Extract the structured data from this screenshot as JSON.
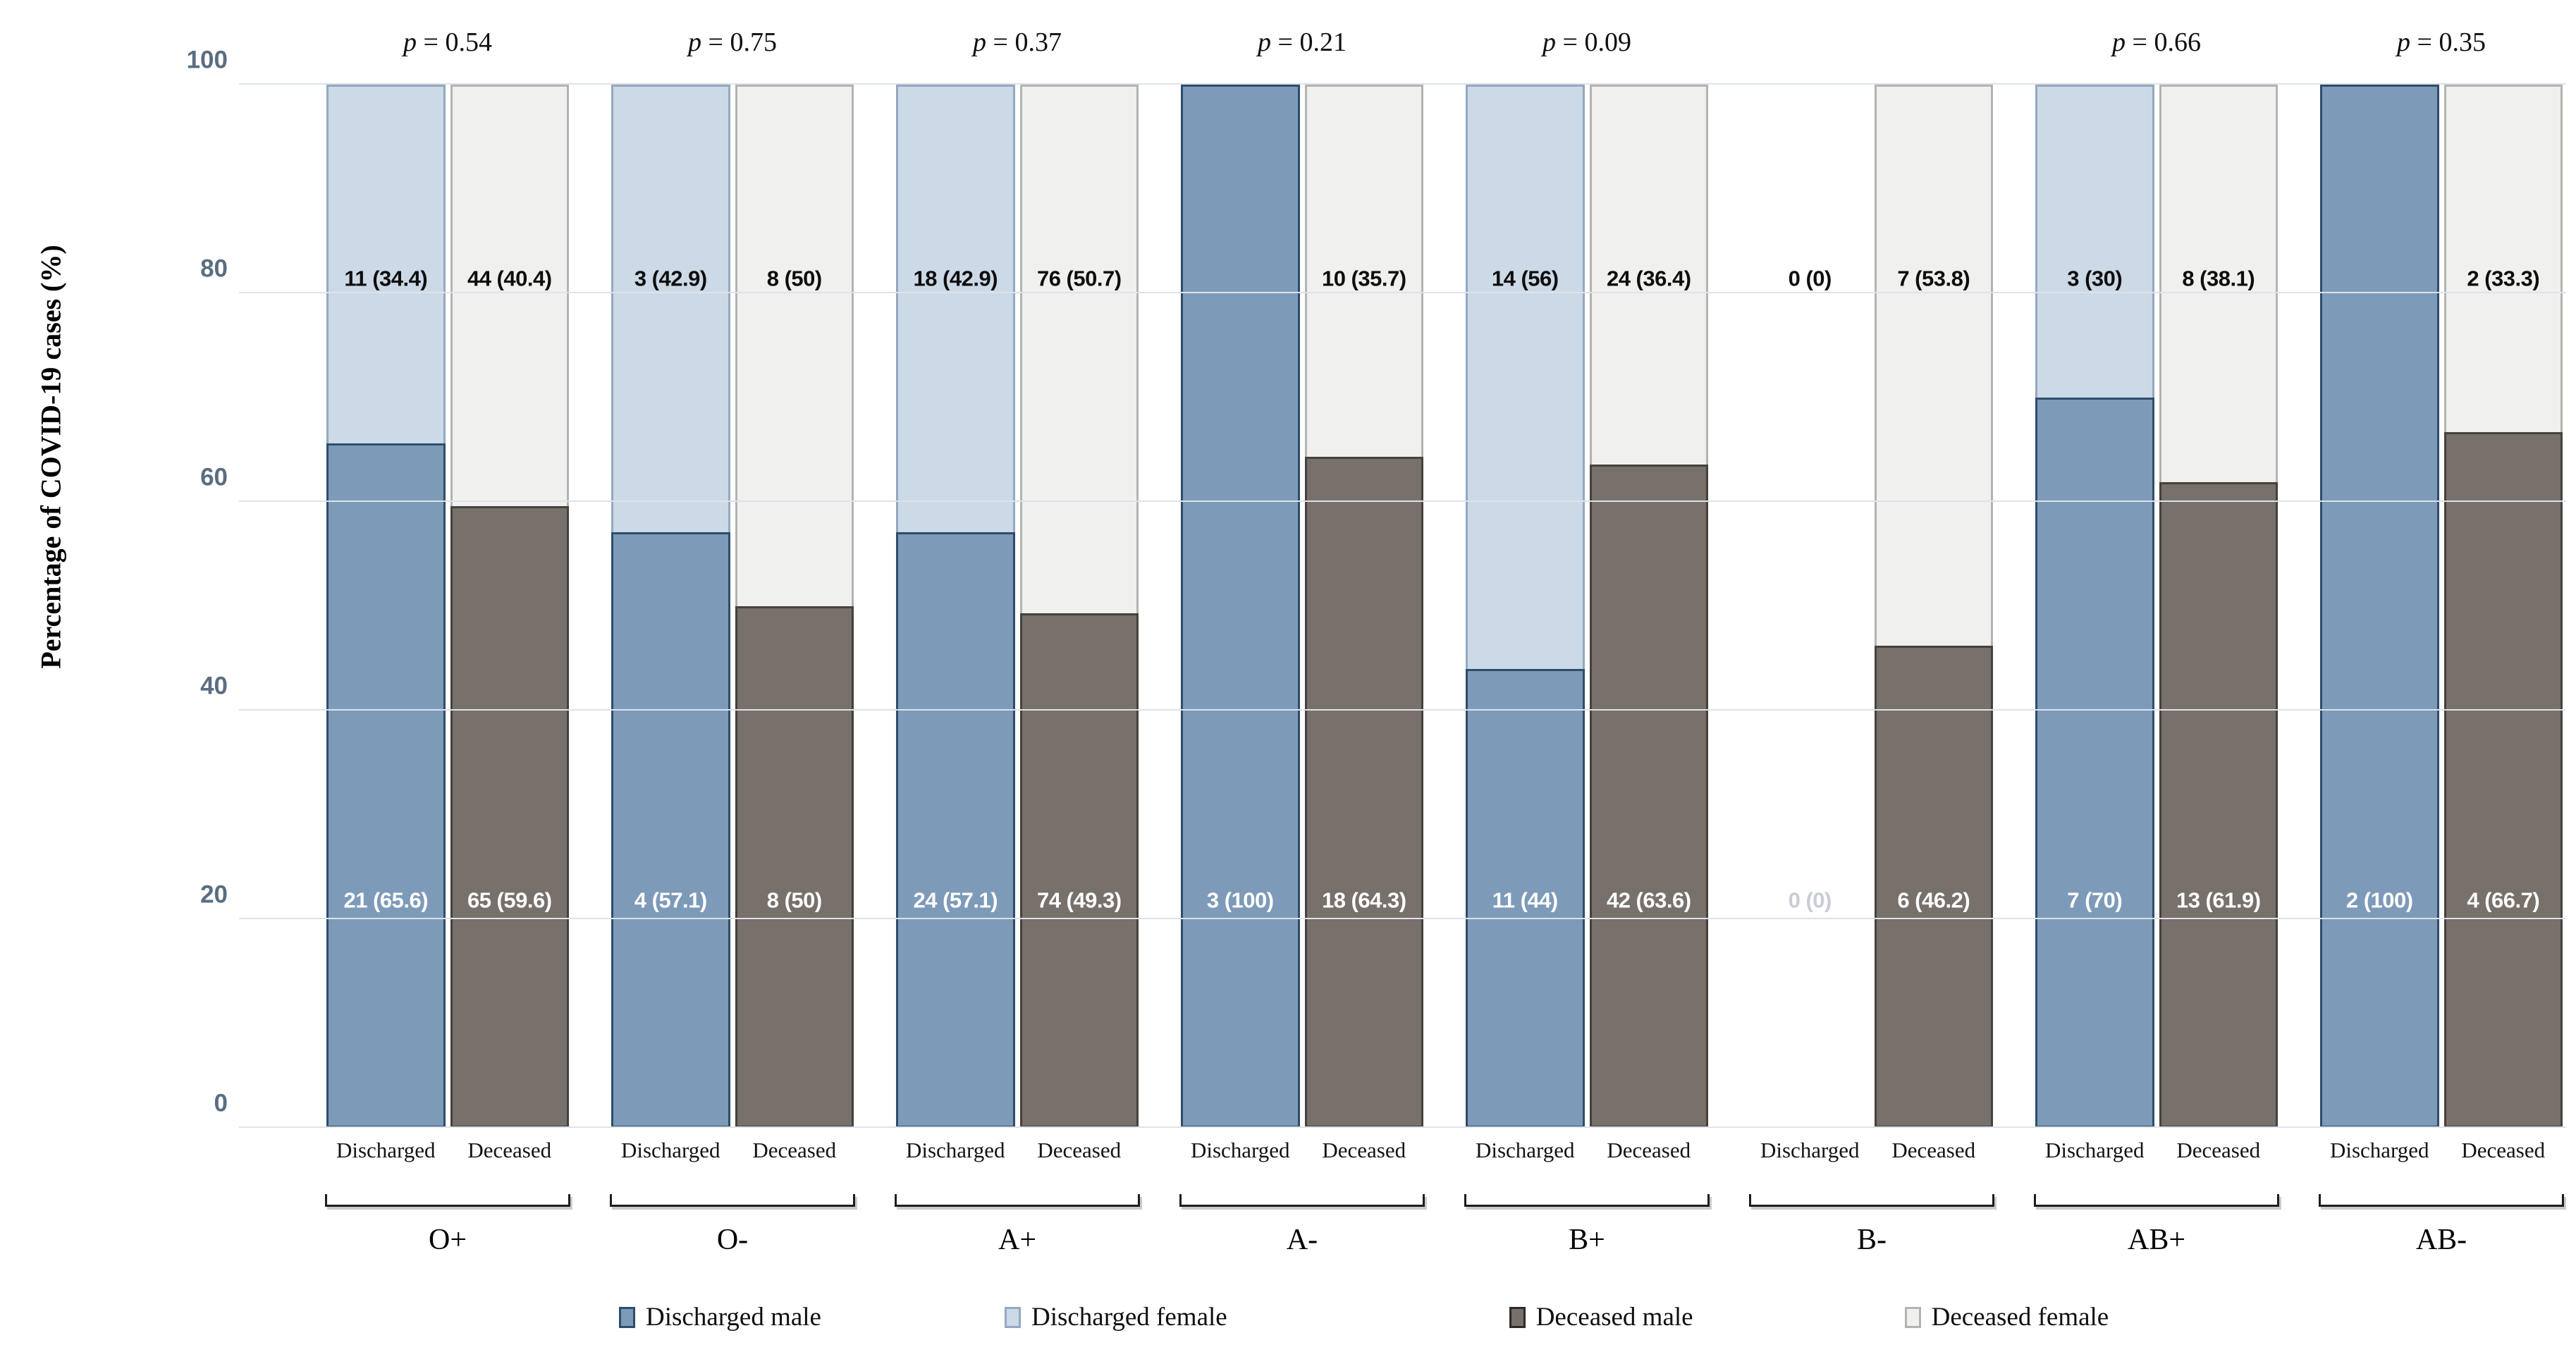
{
  "y_axis": {
    "title": "Percentage of COVID-19 cases (%)",
    "ticks": [
      0,
      20,
      40,
      60,
      80,
      100
    ]
  },
  "p_symbol": "p",
  "colors": {
    "discharged_male": "#7D9AB9",
    "discharged_male_border": "#2F4D6B",
    "discharged_female": "#CCD9E6",
    "discharged_female_border": "#93A9BF",
    "deceased_male": "#77706B",
    "deceased_male_border": "#46413D",
    "deceased_female": "#F0F0EE",
    "deceased_female_border": "#B3B3B0",
    "grid": "#DDE3E9",
    "axis_text": "#5A6E82",
    "muted_label": "#C7CDD5"
  },
  "legend": {
    "items": [
      {
        "label": "Discharged male",
        "key": "dm"
      },
      {
        "label": "Discharged female",
        "key": "df"
      },
      {
        "label": "Deceased male",
        "key": "xm"
      },
      {
        "label": "Deceased female",
        "key": "xf"
      }
    ]
  },
  "chart_data": {
    "type": "bar",
    "stacked": true,
    "ylabel": "Percentage of COVID-19 cases (%)",
    "ylim": [
      0,
      100
    ],
    "grid": true,
    "legend_position": "bottom",
    "groups": [
      {
        "blood_group": "O+",
        "p_label": "p = 0.54",
        "bars": [
          {
            "condition": "Discharged",
            "type": "discharged",
            "male_n": 21,
            "male_pct": 65.6,
            "female_n": 11,
            "female_pct": 34.4,
            "label_top": "11 (34.4)",
            "label_bottom": "21 (65.6)",
            "bottom_muted": false
          },
          {
            "condition": "Deceased",
            "type": "deceased",
            "male_n": 65,
            "male_pct": 59.6,
            "female_n": 44,
            "female_pct": 40.4,
            "label_top": "44 (40.4)",
            "label_bottom": "65 (59.6)",
            "bottom_muted": false
          }
        ]
      },
      {
        "blood_group": "O-",
        "p_label": "p = 0.75",
        "bars": [
          {
            "condition": "Discharged",
            "type": "discharged",
            "male_n": 4,
            "male_pct": 57.1,
            "female_n": 3,
            "female_pct": 42.9,
            "label_top": "3 (42.9)",
            "label_bottom": "4 (57.1)",
            "bottom_muted": false
          },
          {
            "condition": "Deceased",
            "type": "deceased",
            "male_n": 8,
            "male_pct": 50,
            "female_n": 8,
            "female_pct": 50,
            "label_top": "8 (50)",
            "label_bottom": "8 (50)",
            "bottom_muted": false
          }
        ]
      },
      {
        "blood_group": "A+",
        "p_label": "p = 0.37",
        "bars": [
          {
            "condition": "Discharged",
            "type": "discharged",
            "male_n": 24,
            "male_pct": 57.1,
            "female_n": 18,
            "female_pct": 42.9,
            "label_top": "18 (42.9)",
            "label_bottom": "24 (57.1)",
            "bottom_muted": false
          },
          {
            "condition": "Deceased",
            "type": "deceased",
            "male_n": 74,
            "male_pct": 49.3,
            "female_n": 76,
            "female_pct": 50.7,
            "label_top": "76 (50.7)",
            "label_bottom": "74 (49.3)",
            "bottom_muted": false
          }
        ]
      },
      {
        "blood_group": "A-",
        "p_label": "p = 0.21",
        "bars": [
          {
            "condition": "Discharged",
            "type": "discharged",
            "male_n": 3,
            "male_pct": 100,
            "female_n": 0,
            "female_pct": 0,
            "label_top": null,
            "label_bottom": "3 (100)",
            "bottom_muted": false
          },
          {
            "condition": "Deceased",
            "type": "deceased",
            "male_n": 18,
            "male_pct": 64.3,
            "female_n": 10,
            "female_pct": 35.7,
            "label_top": "10 (35.7)",
            "label_bottom": "18 (64.3)",
            "bottom_muted": false
          }
        ]
      },
      {
        "blood_group": "B+",
        "p_label": "p = 0.09",
        "bars": [
          {
            "condition": "Discharged",
            "type": "discharged",
            "male_n": 11,
            "male_pct": 44,
            "female_n": 14,
            "female_pct": 56,
            "label_top": "14 (56)",
            "label_bottom": "11 (44)",
            "bottom_muted": false
          },
          {
            "condition": "Deceased",
            "type": "deceased",
            "male_n": 42,
            "male_pct": 63.6,
            "female_n": 24,
            "female_pct": 36.4,
            "label_top": "24 (36.4)",
            "label_bottom": "42 (63.6)",
            "bottom_muted": false
          }
        ]
      },
      {
        "blood_group": "B-",
        "p_label": null,
        "bars": [
          {
            "condition": "Discharged",
            "type": "discharged",
            "male_n": 0,
            "male_pct": 0,
            "female_n": 0,
            "female_pct": 0,
            "label_top": "0 (0)",
            "label_bottom": "0 (0)",
            "bottom_muted": true
          },
          {
            "condition": "Deceased",
            "type": "deceased",
            "male_n": 6,
            "male_pct": 46.2,
            "female_n": 7,
            "female_pct": 53.8,
            "label_top": "7 (53.8)",
            "label_bottom": "6 (46.2)",
            "bottom_muted": false
          }
        ]
      },
      {
        "blood_group": "AB+",
        "p_label": "p = 0.66",
        "bars": [
          {
            "condition": "Discharged",
            "type": "discharged",
            "male_n": 7,
            "male_pct": 70,
            "female_n": 3,
            "female_pct": 30,
            "label_top": "3 (30)",
            "label_bottom": "7 (70)",
            "bottom_muted": false
          },
          {
            "condition": "Deceased",
            "type": "deceased",
            "male_n": 13,
            "male_pct": 61.9,
            "female_n": 8,
            "female_pct": 38.1,
            "label_top": "8 (38.1)",
            "label_bottom": "13 (61.9)",
            "bottom_muted": false
          }
        ]
      },
      {
        "blood_group": "AB-",
        "p_label": "p = 0.35",
        "bars": [
          {
            "condition": "Discharged",
            "type": "discharged",
            "male_n": 2,
            "male_pct": 100,
            "female_n": 0,
            "female_pct": 0,
            "label_top": null,
            "label_bottom": "2 (100)",
            "bottom_muted": false
          },
          {
            "condition": "Deceased",
            "type": "deceased",
            "male_n": 4,
            "male_pct": 66.7,
            "female_n": 2,
            "female_pct": 33.3,
            "label_top": "2 (33.3)",
            "label_bottom": "4 (66.7)",
            "bottom_muted": false
          }
        ]
      }
    ]
  }
}
